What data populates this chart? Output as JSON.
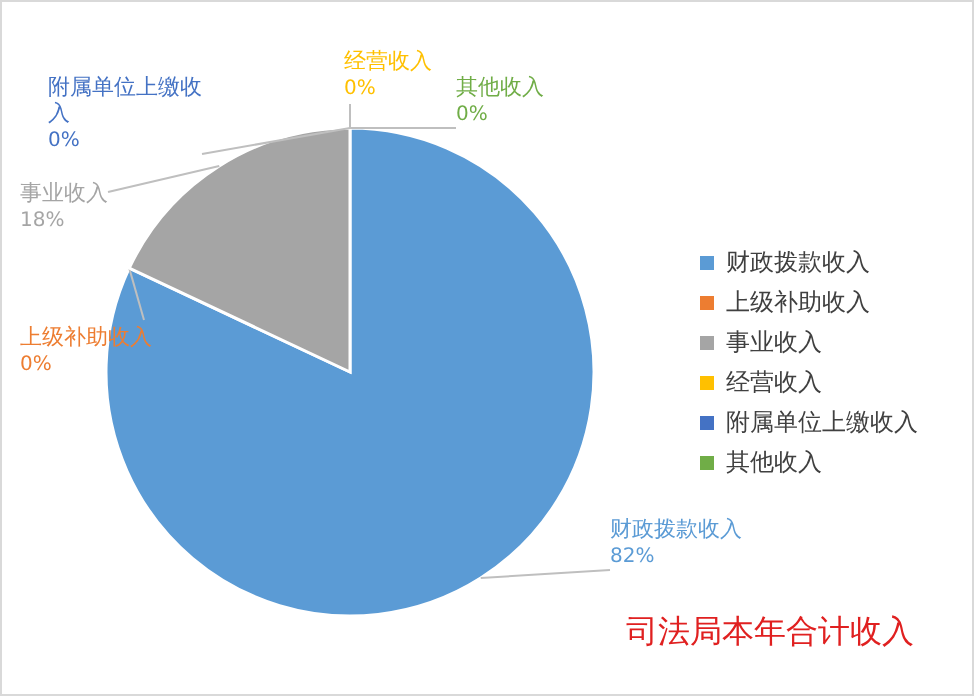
{
  "chart_data": {
    "type": "pie",
    "title": "司法局本年合计收入",
    "categories": [
      "财政拨款收入",
      "上级补助收入",
      "事业收入",
      "经营收入",
      "附属单位上缴收入",
      "其他收入"
    ],
    "values": [
      82,
      0,
      18,
      0,
      0,
      0
    ],
    "value_labels": [
      "82%",
      "0%",
      "18%",
      "0%",
      "0%",
      "0%"
    ],
    "colors": [
      "#5b9bd5",
      "#ed7d31",
      "#a5a5a5",
      "#ffc000",
      "#4472c4",
      "#70ad47"
    ],
    "legend": "right"
  }
}
